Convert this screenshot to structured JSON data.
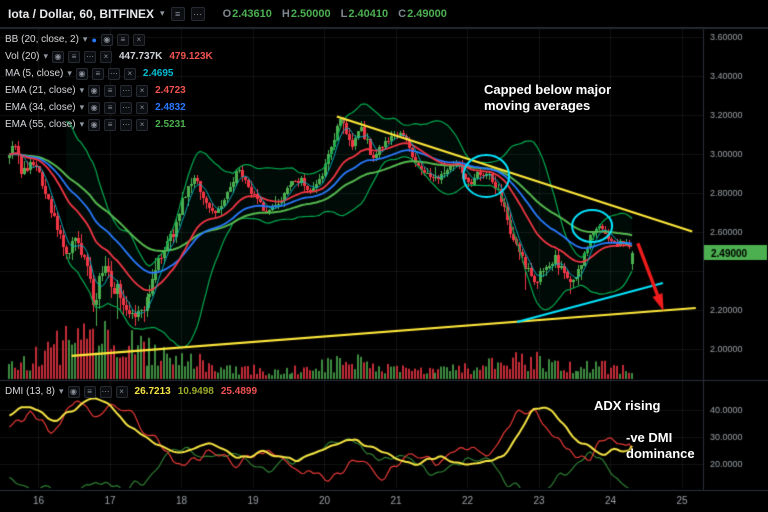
{
  "icons": {
    "caret": "▾",
    "dot": "●",
    "eye": "◉",
    "close": "×",
    "menu": "≡",
    "more": "⋯"
  },
  "colors": {
    "bg": "#000000",
    "panel_border": "#2a2e39",
    "grid": "rgba(255,255,255,0.07)",
    "up": "#4caf50",
    "down": "#f23645",
    "bb": "#00a94f",
    "ma5": "#00bcd4",
    "ema21": "#f23645",
    "ema34": "#2979ff",
    "ema55": "#55b84f",
    "adx": "#f5e342",
    "plus_di": "#2e7d32",
    "minus_di": "#e53935",
    "drawing_yellow": "#ffe83a",
    "drawing_cyan": "#00e5ff",
    "arrow_red": "#ee1c1c",
    "badge_bg": "#4caf50",
    "badge_text": "#000000",
    "axis_text": "#9ba0a6"
  },
  "topbar": {
    "symbol_title": "Iota / Dollar, 60, BITFINEX",
    "ohlc": [
      {
        "label": "O",
        "value": "2.43610"
      },
      {
        "label": "H",
        "value": "2.50000"
      },
      {
        "label": "L",
        "value": "2.40410"
      },
      {
        "label": "C",
        "value": "2.49000"
      }
    ]
  },
  "legend": {
    "rows": [
      {
        "label": "BB (20, close, 2)",
        "values": []
      },
      {
        "label": "Vol (20)",
        "values": [
          {
            "text": "447.737K",
            "color": "#cfd3d8"
          },
          {
            "text": "479.123K",
            "color": "#ef5350"
          }
        ]
      },
      {
        "label": "MA (5, close)",
        "values": [
          {
            "text": "2.4695",
            "color": "#00bcd4"
          }
        ]
      },
      {
        "label": "EMA (21, close)",
        "values": [
          {
            "text": "2.4723",
            "color": "#ef5350"
          }
        ]
      },
      {
        "label": "EMA (34, close)",
        "values": [
          {
            "text": "2.4832",
            "color": "#2979ff"
          }
        ]
      },
      {
        "label": "EMA (55, close)",
        "values": [
          {
            "text": "2.5231",
            "color": "#4caf50"
          }
        ]
      }
    ]
  },
  "dmi_legend": {
    "label": "DMI (13, 8)",
    "values": [
      {
        "text": "26.7213",
        "color": "#f5e342"
      },
      {
        "text": "10.9498",
        "color": "#9aa82c"
      },
      {
        "text": "25.4899",
        "color": "#ef5350"
      }
    ]
  },
  "annotations": {
    "capped": "Capped below major moving averages",
    "adx": "ADX rising",
    "dmi": "-ve DMI dominance"
  },
  "price_axis": {
    "labels": [
      {
        "text": "3.60000",
        "value": 3.6
      },
      {
        "text": "3.40000",
        "value": 3.4
      },
      {
        "text": "3.20000",
        "value": 3.2
      },
      {
        "text": "3.00000",
        "value": 3.0
      },
      {
        "text": "2.80000",
        "value": 2.8
      },
      {
        "text": "2.60000",
        "value": 2.6
      },
      {
        "text": "2.20000",
        "value": 2.2
      },
      {
        "text": "2.00000",
        "value": 2.0
      }
    ],
    "badge": {
      "text": "2.49000",
      "value": 2.49
    }
  },
  "dmi_axis": {
    "labels": [
      {
        "text": "40.0000",
        "value": 40
      },
      {
        "text": "30.0000",
        "value": 30
      },
      {
        "text": "20.0000",
        "value": 20
      }
    ]
  },
  "time_axis": {
    "labels": [
      {
        "text": "16",
        "day": 16
      },
      {
        "text": "17",
        "day": 17
      },
      {
        "text": "18",
        "day": 18
      },
      {
        "text": "19",
        "day": 19
      },
      {
        "text": "20",
        "day": 20
      },
      {
        "text": "21",
        "day": 21
      },
      {
        "text": "22",
        "day": 22
      },
      {
        "text": "23",
        "day": 23
      },
      {
        "text": "24",
        "day": 24
      },
      {
        "text": "25",
        "day": 25
      }
    ]
  },
  "chart_data": {
    "type": "candlestick",
    "title": "Iota / Dollar, 60, BITFINEX",
    "axis": {
      "price_min": 1.9,
      "price_max": 3.7,
      "price_step": 0.2,
      "days": [
        16,
        25
      ]
    },
    "last_candle": {
      "open": 2.4361,
      "high": 2.5,
      "low": 2.4041,
      "close": 2.49
    },
    "dmi_last": {
      "adx": 26.7213,
      "plus_di": 10.9498,
      "minus_di": 25.4899
    },
    "indicator_values": {
      "ma5": 2.4695,
      "ema21": 2.4723,
      "ema34": 2.4832,
      "ema55": 2.5231,
      "vol": "447.737K",
      "vol_ma": "479.123K"
    },
    "anchors": {
      "price": [
        [
          15.58,
          2.98
        ],
        [
          15.68,
          3.06
        ],
        [
          15.8,
          2.9
        ],
        [
          15.95,
          2.97
        ],
        [
          16.1,
          2.84
        ],
        [
          16.25,
          2.66
        ],
        [
          16.4,
          2.5
        ],
        [
          16.55,
          2.56
        ],
        [
          16.7,
          2.4
        ],
        [
          16.8,
          2.24
        ],
        [
          16.92,
          2.42
        ],
        [
          17.05,
          2.34
        ],
        [
          17.2,
          2.24
        ],
        [
          17.35,
          2.14
        ],
        [
          17.5,
          2.2
        ],
        [
          17.62,
          2.36
        ],
        [
          17.75,
          2.5
        ],
        [
          17.9,
          2.58
        ],
        [
          18.05,
          2.76
        ],
        [
          18.2,
          2.88
        ],
        [
          18.35,
          2.76
        ],
        [
          18.5,
          2.7
        ],
        [
          18.65,
          2.78
        ],
        [
          18.8,
          2.92
        ],
        [
          18.95,
          2.82
        ],
        [
          19.1,
          2.74
        ],
        [
          19.25,
          2.7
        ],
        [
          19.4,
          2.76
        ],
        [
          19.55,
          2.84
        ],
        [
          19.7,
          2.87
        ],
        [
          19.85,
          2.8
        ],
        [
          20.0,
          2.9
        ],
        [
          20.15,
          3.08
        ],
        [
          20.28,
          3.18
        ],
        [
          20.4,
          3.05
        ],
        [
          20.55,
          3.12
        ],
        [
          20.7,
          2.98
        ],
        [
          20.85,
          3.06
        ],
        [
          21.0,
          3.11
        ],
        [
          21.15,
          3.07
        ],
        [
          21.3,
          2.96
        ],
        [
          21.45,
          2.9
        ],
        [
          21.6,
          2.87
        ],
        [
          21.75,
          2.93
        ],
        [
          21.9,
          2.95
        ],
        [
          22.05,
          2.85
        ],
        [
          22.2,
          2.9
        ],
        [
          22.35,
          2.87
        ],
        [
          22.5,
          2.77
        ],
        [
          22.62,
          2.6
        ],
        [
          22.75,
          2.47
        ],
        [
          22.9,
          2.38
        ],
        [
          23.0,
          2.35
        ],
        [
          23.12,
          2.44
        ],
        [
          23.25,
          2.46
        ],
        [
          23.38,
          2.37
        ],
        [
          23.5,
          2.35
        ],
        [
          23.62,
          2.44
        ],
        [
          23.75,
          2.58
        ],
        [
          23.88,
          2.63
        ],
        [
          24.0,
          2.57
        ],
        [
          24.1,
          2.52
        ],
        [
          24.2,
          2.55
        ],
        [
          24.33,
          2.49
        ]
      ],
      "volatility": [
        [
          15.58,
          0.055
        ],
        [
          16.3,
          0.06
        ],
        [
          16.8,
          0.075
        ],
        [
          17.5,
          0.07
        ],
        [
          18.0,
          0.05
        ],
        [
          18.8,
          0.038
        ],
        [
          19.5,
          0.03
        ],
        [
          20.1,
          0.045
        ],
        [
          20.5,
          0.045
        ],
        [
          21.2,
          0.03
        ],
        [
          22.0,
          0.035
        ],
        [
          22.7,
          0.055
        ],
        [
          23.2,
          0.045
        ],
        [
          23.8,
          0.035
        ],
        [
          24.33,
          0.025
        ]
      ],
      "volume": [
        [
          15.58,
          0.3
        ],
        [
          16.0,
          0.4
        ],
        [
          16.3,
          0.6
        ],
        [
          16.6,
          0.8
        ],
        [
          16.83,
          1.0
        ],
        [
          17.1,
          0.65
        ],
        [
          17.5,
          0.55
        ],
        [
          17.9,
          0.4
        ],
        [
          18.3,
          0.3
        ],
        [
          18.8,
          0.2
        ],
        [
          19.3,
          0.15
        ],
        [
          19.8,
          0.18
        ],
        [
          20.2,
          0.3
        ],
        [
          20.4,
          0.38
        ],
        [
          20.8,
          0.2
        ],
        [
          21.3,
          0.15
        ],
        [
          21.8,
          0.17
        ],
        [
          22.2,
          0.22
        ],
        [
          22.6,
          0.33
        ],
        [
          23.0,
          0.33
        ],
        [
          23.4,
          0.26
        ],
        [
          23.8,
          0.25
        ],
        [
          24.1,
          0.2
        ],
        [
          24.33,
          0.15
        ]
      ],
      "adx": [
        [
          15.58,
          38
        ],
        [
          15.9,
          42
        ],
        [
          16.2,
          36
        ],
        [
          16.5,
          40
        ],
        [
          16.8,
          45
        ],
        [
          17.0,
          42
        ],
        [
          17.3,
          34
        ],
        [
          17.6,
          28
        ],
        [
          18.0,
          24
        ],
        [
          18.4,
          27
        ],
        [
          18.8,
          22
        ],
        [
          19.2,
          25
        ],
        [
          19.6,
          21
        ],
        [
          20.0,
          26
        ],
        [
          20.4,
          29
        ],
        [
          20.8,
          24
        ],
        [
          21.2,
          20
        ],
        [
          21.6,
          22
        ],
        [
          22.0,
          20
        ],
        [
          22.3,
          21
        ],
        [
          22.5,
          22
        ],
        [
          22.7,
          30
        ],
        [
          22.9,
          40
        ],
        [
          23.1,
          42
        ],
        [
          23.3,
          36
        ],
        [
          23.5,
          30
        ],
        [
          23.7,
          26
        ],
        [
          23.9,
          24
        ],
        [
          24.1,
          25
        ],
        [
          24.33,
          27
        ]
      ],
      "plus_di": [
        [
          15.58,
          16
        ],
        [
          16.0,
          11
        ],
        [
          16.4,
          9
        ],
        [
          16.8,
          13
        ],
        [
          17.2,
          10
        ],
        [
          17.6,
          16
        ],
        [
          18.0,
          28
        ],
        [
          18.4,
          21
        ],
        [
          18.8,
          26
        ],
        [
          19.2,
          17
        ],
        [
          19.6,
          23
        ],
        [
          20.0,
          27
        ],
        [
          20.3,
          31
        ],
        [
          20.7,
          21
        ],
        [
          21.1,
          25
        ],
        [
          21.5,
          16
        ],
        [
          21.9,
          21
        ],
        [
          22.3,
          23
        ],
        [
          22.6,
          13
        ],
        [
          22.9,
          9
        ],
        [
          23.2,
          14
        ],
        [
          23.5,
          19
        ],
        [
          23.7,
          26
        ],
        [
          23.9,
          20
        ],
        [
          24.1,
          15
        ],
        [
          24.33,
          11
        ]
      ],
      "minus_di": [
        [
          15.58,
          32
        ],
        [
          15.9,
          40
        ],
        [
          16.2,
          33
        ],
        [
          16.5,
          43
        ],
        [
          16.8,
          38
        ],
        [
          17.1,
          43
        ],
        [
          17.4,
          36
        ],
        [
          17.7,
          28
        ],
        [
          18.0,
          20
        ],
        [
          18.4,
          25
        ],
        [
          18.8,
          19
        ],
        [
          19.2,
          26
        ],
        [
          19.6,
          20
        ],
        [
          20.0,
          14
        ],
        [
          20.4,
          20
        ],
        [
          20.8,
          16
        ],
        [
          21.2,
          24
        ],
        [
          21.6,
          20
        ],
        [
          22.0,
          26
        ],
        [
          22.3,
          22
        ],
        [
          22.6,
          34
        ],
        [
          22.8,
          42
        ],
        [
          23.0,
          38
        ],
        [
          23.2,
          32
        ],
        [
          23.4,
          26
        ],
        [
          23.6,
          20
        ],
        [
          23.8,
          26
        ],
        [
          24.0,
          30
        ],
        [
          24.15,
          26
        ],
        [
          24.33,
          25.5
        ]
      ]
    },
    "drawings": {
      "trendlines": [
        {
          "from": [
            20.18,
            3.19
          ],
          "to": [
            25.15,
            2.6
          ],
          "color": "yellow",
          "width": 2.2
        },
        {
          "from": [
            16.47,
            1.962
          ],
          "to": [
            25.2,
            2.208
          ],
          "color": "yellow",
          "width": 2.2
        },
        {
          "from": [
            22.7,
            2.136
          ],
          "to": [
            24.74,
            2.336
          ],
          "color": "cyan",
          "width": 2
        }
      ],
      "ellipses": [
        {
          "center": [
            22.27,
            2.885
          ],
          "rx": 0.32,
          "ry": 0.108
        },
        {
          "center": [
            23.75,
            2.628
          ],
          "rx": 0.28,
          "ry": 0.082
        }
      ],
      "arrow": {
        "from": [
          24.39,
          2.54
        ],
        "to": [
          24.7,
          2.24
        ]
      }
    }
  }
}
